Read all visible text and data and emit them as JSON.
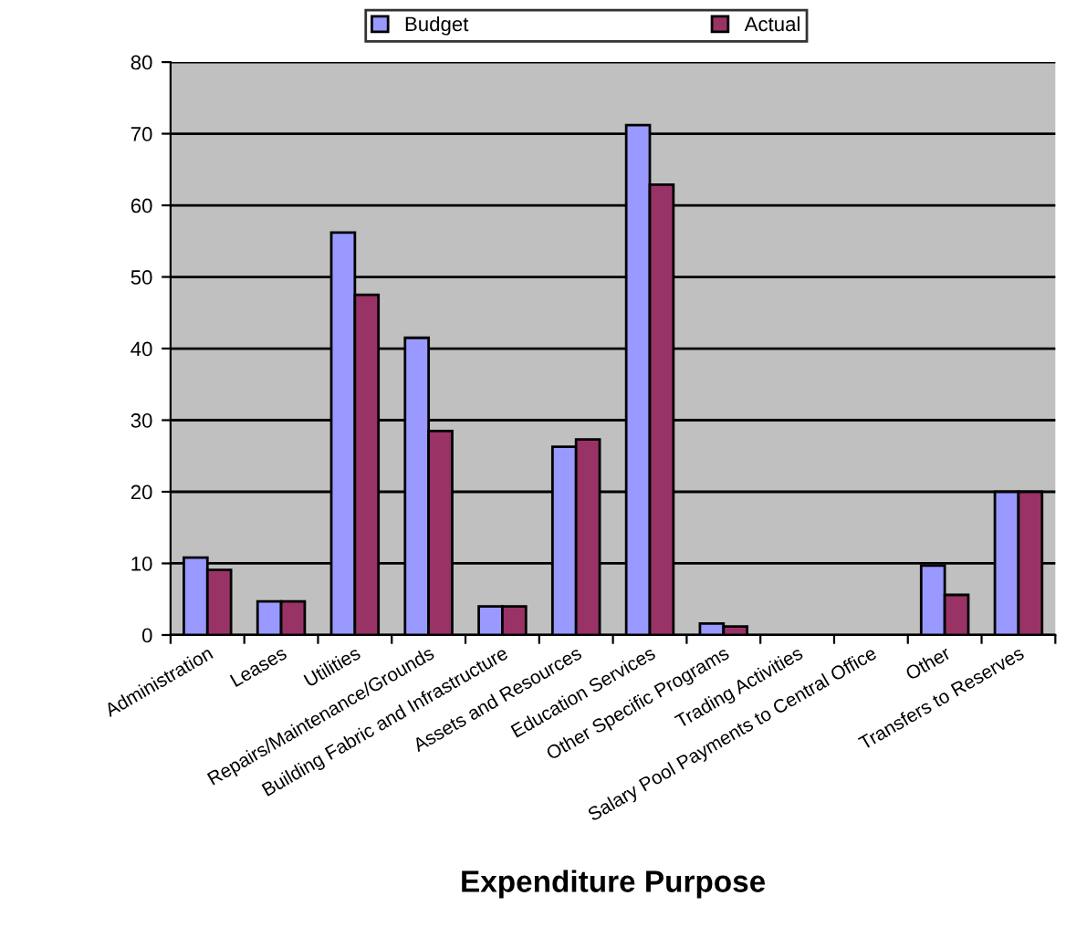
{
  "chart_data": {
    "type": "bar",
    "xlabel": "Expenditure Purpose",
    "categories": [
      "Administration",
      "Leases",
      "Utilities",
      "Repairs/Maintenance/Grounds",
      "Building Fabric and Infrastructure",
      "Assets and Resources",
      "Education Services",
      "Other Specific Programs",
      "Trading Activities",
      "Salary Pool Payments to Central Office",
      "Other",
      "Transfers to Reserves"
    ],
    "series": [
      {
        "name": "Budget",
        "color": "#9999ff",
        "values": [
          10.8,
          4.7,
          56.2,
          41.5,
          4.0,
          26.3,
          71.2,
          1.6,
          null,
          null,
          9.7,
          20.0
        ]
      },
      {
        "name": "Actual",
        "color": "#993366",
        "values": [
          9.1,
          4.7,
          47.5,
          28.5,
          4.0,
          27.3,
          62.9,
          1.2,
          null,
          null,
          5.6,
          20.0
        ]
      }
    ],
    "ylim": [
      0,
      80
    ],
    "yticks": [
      0,
      10,
      20,
      30,
      40,
      50,
      60,
      70,
      80
    ],
    "grid": "y",
    "legend": "top"
  }
}
